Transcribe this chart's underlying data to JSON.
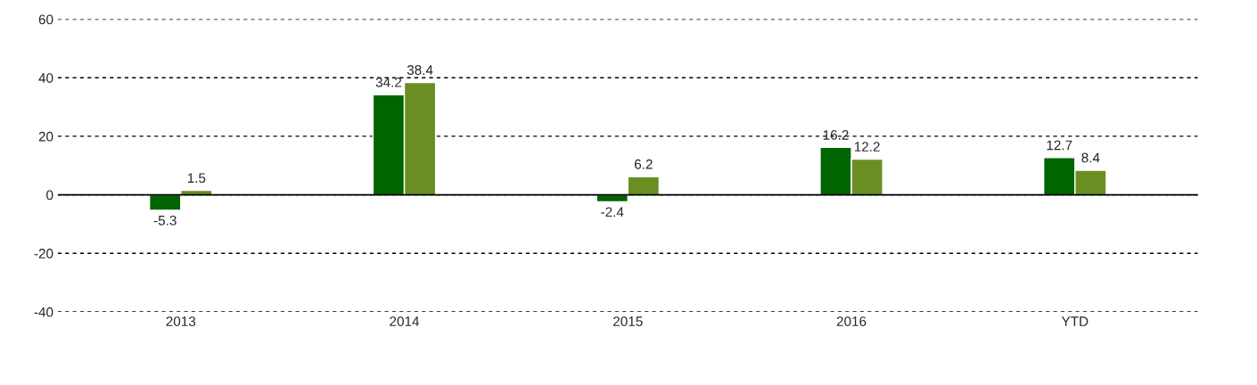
{
  "chart_data": {
    "type": "bar",
    "categories": [
      "2013",
      "2014",
      "2015",
      "2016",
      "YTD"
    ],
    "series": [
      {
        "color": "#006400",
        "values": [
          -5.3,
          34.2,
          -2.4,
          16.2,
          12.7
        ]
      },
      {
        "color": "#6b8e23",
        "values": [
          1.5,
          38.4,
          6.2,
          12.2,
          8.4
        ]
      }
    ],
    "ylim": [
      -40,
      60
    ],
    "yticks": [
      -40,
      -20,
      0,
      20,
      40,
      60
    ],
    "grid": "y",
    "data_labels": true,
    "ref_lines": [
      {
        "axis": "y",
        "value": 0,
        "color": "#000000",
        "line_style": "solid"
      }
    ]
  }
}
